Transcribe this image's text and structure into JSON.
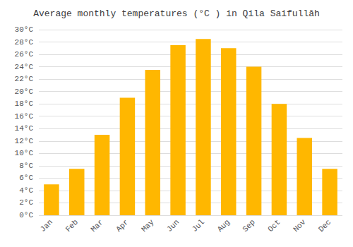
{
  "chart_data": {
    "type": "bar",
    "title": "Average monthly temperatures (°C ) in Qila Saifullāh",
    "categories": [
      "Jan",
      "Feb",
      "Mar",
      "Apr",
      "May",
      "Jun",
      "Jul",
      "Aug",
      "Sep",
      "Oct",
      "Nov",
      "Dec"
    ],
    "values": [
      5,
      7.5,
      13,
      19,
      23.5,
      27.5,
      28.5,
      27,
      24,
      18,
      12.5,
      7.5
    ],
    "color": "#FFB700",
    "ylim": [
      0,
      30
    ],
    "yticks": [
      {
        "value": 0,
        "label": "0°C"
      },
      {
        "value": 2,
        "label": "2°C"
      },
      {
        "value": 4,
        "label": "4°C"
      },
      {
        "value": 6,
        "label": "6°C"
      },
      {
        "value": 8,
        "label": "8°C"
      },
      {
        "value": 10,
        "label": "10°C"
      },
      {
        "value": 12,
        "label": "12°C"
      },
      {
        "value": 14,
        "label": "14°C"
      },
      {
        "value": 16,
        "label": "16°C"
      },
      {
        "value": 18,
        "label": "18°C"
      },
      {
        "value": 20,
        "label": "20°C"
      },
      {
        "value": 22,
        "label": "22°C"
      },
      {
        "value": 24,
        "label": "24°C"
      },
      {
        "value": 26,
        "label": "26°C"
      },
      {
        "value": 28,
        "label": "28°C"
      },
      {
        "value": 30,
        "label": "30°C"
      }
    ],
    "grid": true
  }
}
